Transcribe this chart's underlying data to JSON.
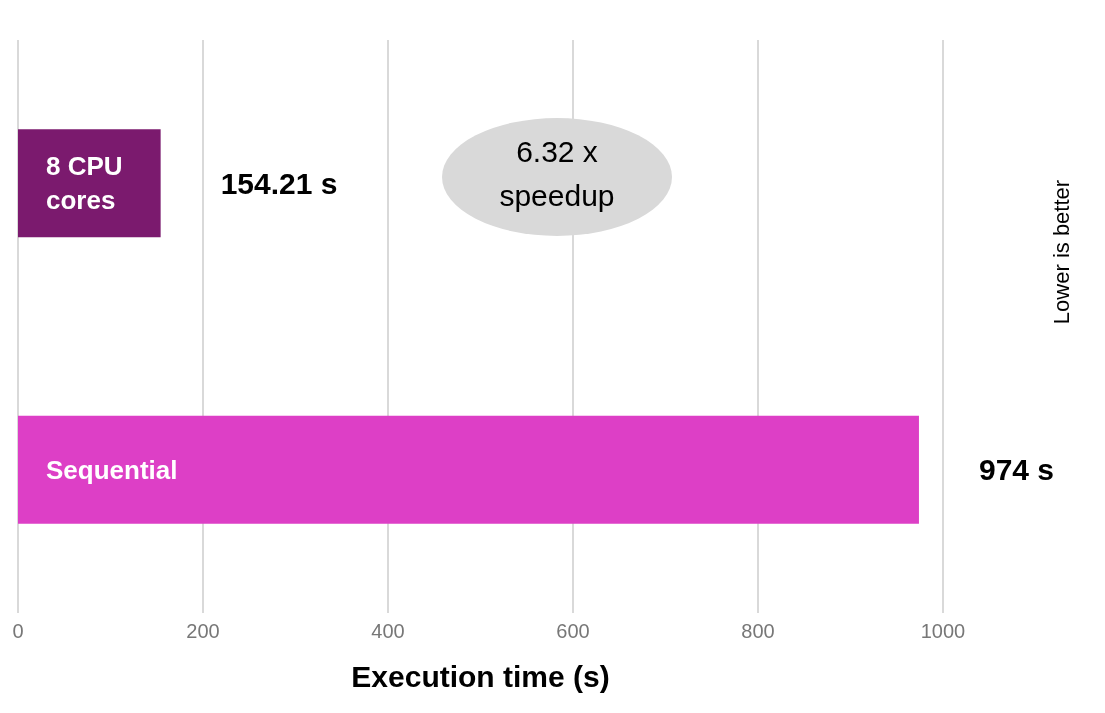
{
  "chart_data": {
    "type": "bar",
    "orientation": "horizontal",
    "categories": [
      "8 CPU cores",
      "Sequential"
    ],
    "values": [
      154.21,
      974
    ],
    "colors": [
      "#7b1a6e",
      "#dd3fc6"
    ],
    "value_labels": [
      "154.21 s",
      "974 s"
    ],
    "xlim": [
      0,
      1000
    ],
    "xticks": [
      0,
      200,
      400,
      600,
      800,
      1000
    ],
    "grid": "x",
    "xlabel": "Execution time (s)",
    "annotations": [
      "6.32 x speedup",
      "Lower is better"
    ]
  }
}
